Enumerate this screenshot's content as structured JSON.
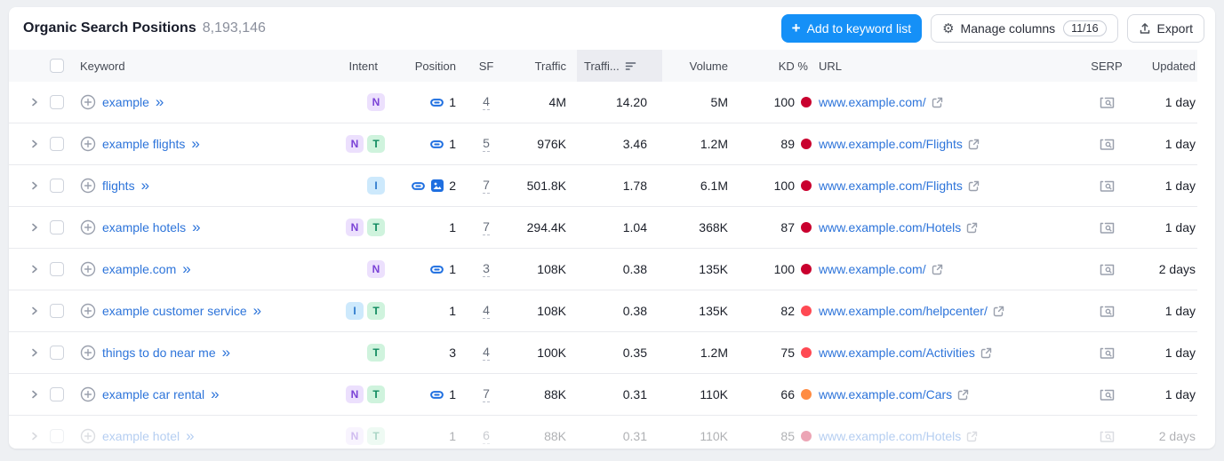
{
  "header": {
    "title": "Organic Search Positions",
    "count": "8,193,146",
    "add_plus": "+",
    "add_to_list_label": "Add to keyword list",
    "manage_columns_label": "Manage columns",
    "columns_badge": "11/16",
    "export_label": "Export"
  },
  "table": {
    "columns": [
      "Keyword",
      "Intent",
      "Position",
      "SF",
      "Traffic",
      "Traffi...",
      "Volume",
      "KD %",
      "URL",
      "SERP",
      "Updated"
    ],
    "sorted_column": "Traffi...",
    "rows": [
      {
        "keyword": "example",
        "intents": [
          "N"
        ],
        "icons": [
          "link"
        ],
        "position": "1",
        "sf": "4",
        "traffic": "4M",
        "traffic_pct": "14.20",
        "volume": "5M",
        "kd": "100",
        "kd_color": "#c9002e",
        "url": "www.example.com/",
        "updated": "1 day",
        "faded": false
      },
      {
        "keyword": "example flights",
        "intents": [
          "N",
          "T"
        ],
        "icons": [
          "link"
        ],
        "position": "1",
        "sf": "5",
        "traffic": "976K",
        "traffic_pct": "3.46",
        "volume": "1.2M",
        "kd": "89",
        "kd_color": "#c9002e",
        "url": "www.example.com/Flights",
        "updated": "1 day",
        "faded": false
      },
      {
        "keyword": "flights",
        "intents": [
          "I"
        ],
        "icons": [
          "link",
          "image"
        ],
        "position": "2",
        "sf": "7",
        "traffic": "501.8K",
        "traffic_pct": "1.78",
        "volume": "6.1M",
        "kd": "100",
        "kd_color": "#c9002e",
        "url": "www.example.com/Flights",
        "updated": "1 day",
        "faded": false
      },
      {
        "keyword": "example hotels",
        "intents": [
          "N",
          "T"
        ],
        "icons": [],
        "position": "1",
        "sf": "7",
        "traffic": "294.4K",
        "traffic_pct": "1.04",
        "volume": "368K",
        "kd": "87",
        "kd_color": "#c9002e",
        "url": "www.example.com/Hotels",
        "updated": "1 day",
        "faded": false
      },
      {
        "keyword": "example.com",
        "intents": [
          "N"
        ],
        "icons": [
          "link"
        ],
        "position": "1",
        "sf": "3",
        "traffic": "108K",
        "traffic_pct": "0.38",
        "volume": "135K",
        "kd": "100",
        "kd_color": "#c9002e",
        "url": "www.example.com/",
        "updated": "2 days",
        "faded": false
      },
      {
        "keyword": "example customer service",
        "intents": [
          "I",
          "T"
        ],
        "icons": [],
        "position": "1",
        "sf": "4",
        "traffic": "108K",
        "traffic_pct": "0.38",
        "volume": "135K",
        "kd": "82",
        "kd_color": "#ff4953",
        "url": "www.example.com/helpcenter/",
        "updated": "1 day",
        "faded": false
      },
      {
        "keyword": "things to do near me",
        "intents": [
          "T"
        ],
        "icons": [],
        "position": "3",
        "sf": "4",
        "traffic": "100K",
        "traffic_pct": "0.35",
        "volume": "1.2M",
        "kd": "75",
        "kd_color": "#ff4953",
        "url": "www.example.com/Activities",
        "updated": "1 day",
        "faded": false
      },
      {
        "keyword": "example car rental",
        "intents": [
          "N",
          "T"
        ],
        "icons": [
          "link"
        ],
        "position": "1",
        "sf": "7",
        "traffic": "88K",
        "traffic_pct": "0.31",
        "volume": "110K",
        "kd": "66",
        "kd_color": "#ff8c43",
        "url": "www.example.com/Cars",
        "updated": "1 day",
        "faded": false
      },
      {
        "keyword": "example hotel",
        "intents": [
          "N",
          "T"
        ],
        "icons": [],
        "position": "1",
        "sf": "6",
        "traffic": "88K",
        "traffic_pct": "0.31",
        "volume": "110K",
        "kd": "85",
        "kd_color": "#c9002e",
        "url": "www.example.com/Hotels",
        "updated": "2 days",
        "faded": true
      }
    ]
  },
  "colors": {
    "accent_blue": "#1590f7",
    "link_blue": "#2d74da",
    "kd_dark_red": "#c9002e",
    "kd_red": "#ff4953",
    "kd_orange": "#ff8c43",
    "intent_n_bg": "#ece0fd",
    "intent_t_bg": "#cff3dd",
    "intent_i_bg": "#cde9fc"
  }
}
